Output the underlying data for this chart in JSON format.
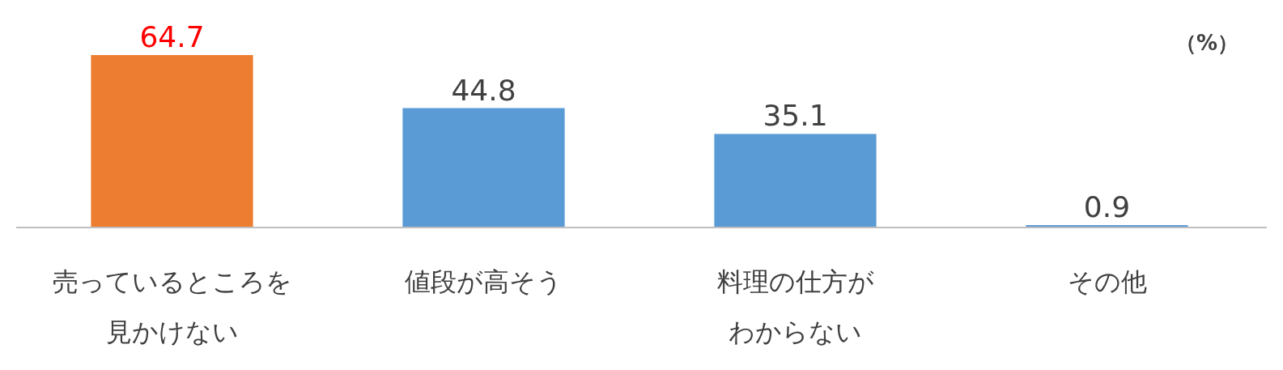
{
  "chart_data": {
    "type": "bar",
    "ylabel": "（%）",
    "categories": [
      "売っているところを見かけない",
      "値段が高そう",
      "料理の仕方がわからない",
      "その他"
    ],
    "values": [
      64.7,
      44.8,
      35.1,
      0.9
    ],
    "colors": [
      "#ed7d31",
      "#5b9bd5",
      "#5b9bd5",
      "#5b9bd5"
    ],
    "data_labels": true
  }
}
